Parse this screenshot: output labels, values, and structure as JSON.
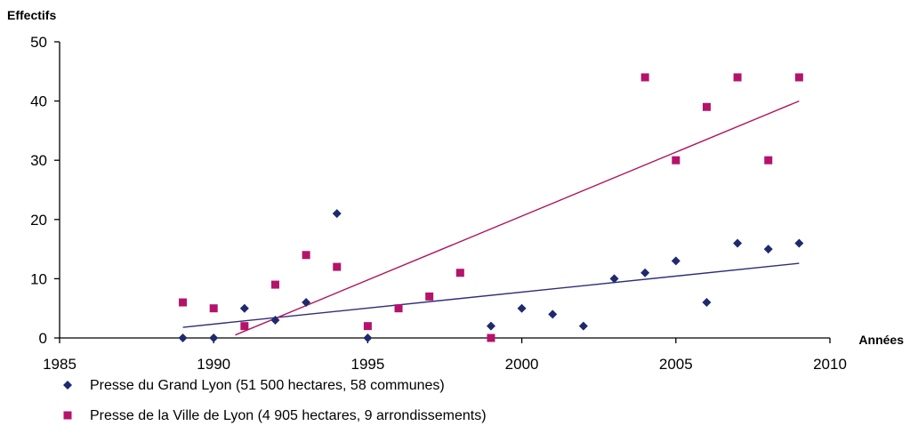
{
  "chart_data": {
    "type": "scatter",
    "title": "",
    "xlabel": "Années",
    "ylabel": "Effectifs",
    "xlim": [
      1985,
      2010
    ],
    "ylim": [
      0,
      50
    ],
    "xticks": [
      1985,
      1990,
      1995,
      2000,
      2005,
      2010
    ],
    "yticks": [
      0,
      10,
      20,
      30,
      40,
      50
    ],
    "grid": false,
    "legend_position": "bottom-left",
    "series": [
      {
        "name": "Presse du Grand Lyon (51 500 hectares, 58 communes)",
        "marker": "diamond",
        "color": "#1f2a6e",
        "x": [
          1989,
          1990,
          1991,
          1992,
          1993,
          1994,
          1995,
          1999,
          2000,
          2001,
          2002,
          2003,
          2004,
          2005,
          2006,
          2007,
          2008,
          2009
        ],
        "y": [
          0,
          0,
          5,
          3,
          6,
          21,
          0,
          2,
          5,
          4,
          2,
          10,
          11,
          13,
          6,
          16,
          15,
          16
        ],
        "trendline": {
          "x": [
            1989,
            2009
          ],
          "y": [
            1.8,
            12.6
          ],
          "color": "#2e2e7a"
        }
      },
      {
        "name": "Presse de la Ville de Lyon (4 905 hectares, 9 arrondissements)",
        "marker": "square",
        "color": "#b5136b",
        "x": [
          1989,
          1990,
          1991,
          1992,
          1993,
          1994,
          1995,
          1996,
          1997,
          1998,
          1999,
          2004,
          2005,
          2006,
          2007,
          2008,
          2009
        ],
        "y": [
          6,
          5,
          2,
          9,
          14,
          12,
          2,
          5,
          7,
          11,
          0,
          44,
          30,
          39,
          44,
          30,
          44
        ],
        "trendline": {
          "x": [
            1990.7,
            2009
          ],
          "y": [
            0.5,
            40
          ],
          "color": "#b0185e"
        }
      }
    ]
  }
}
